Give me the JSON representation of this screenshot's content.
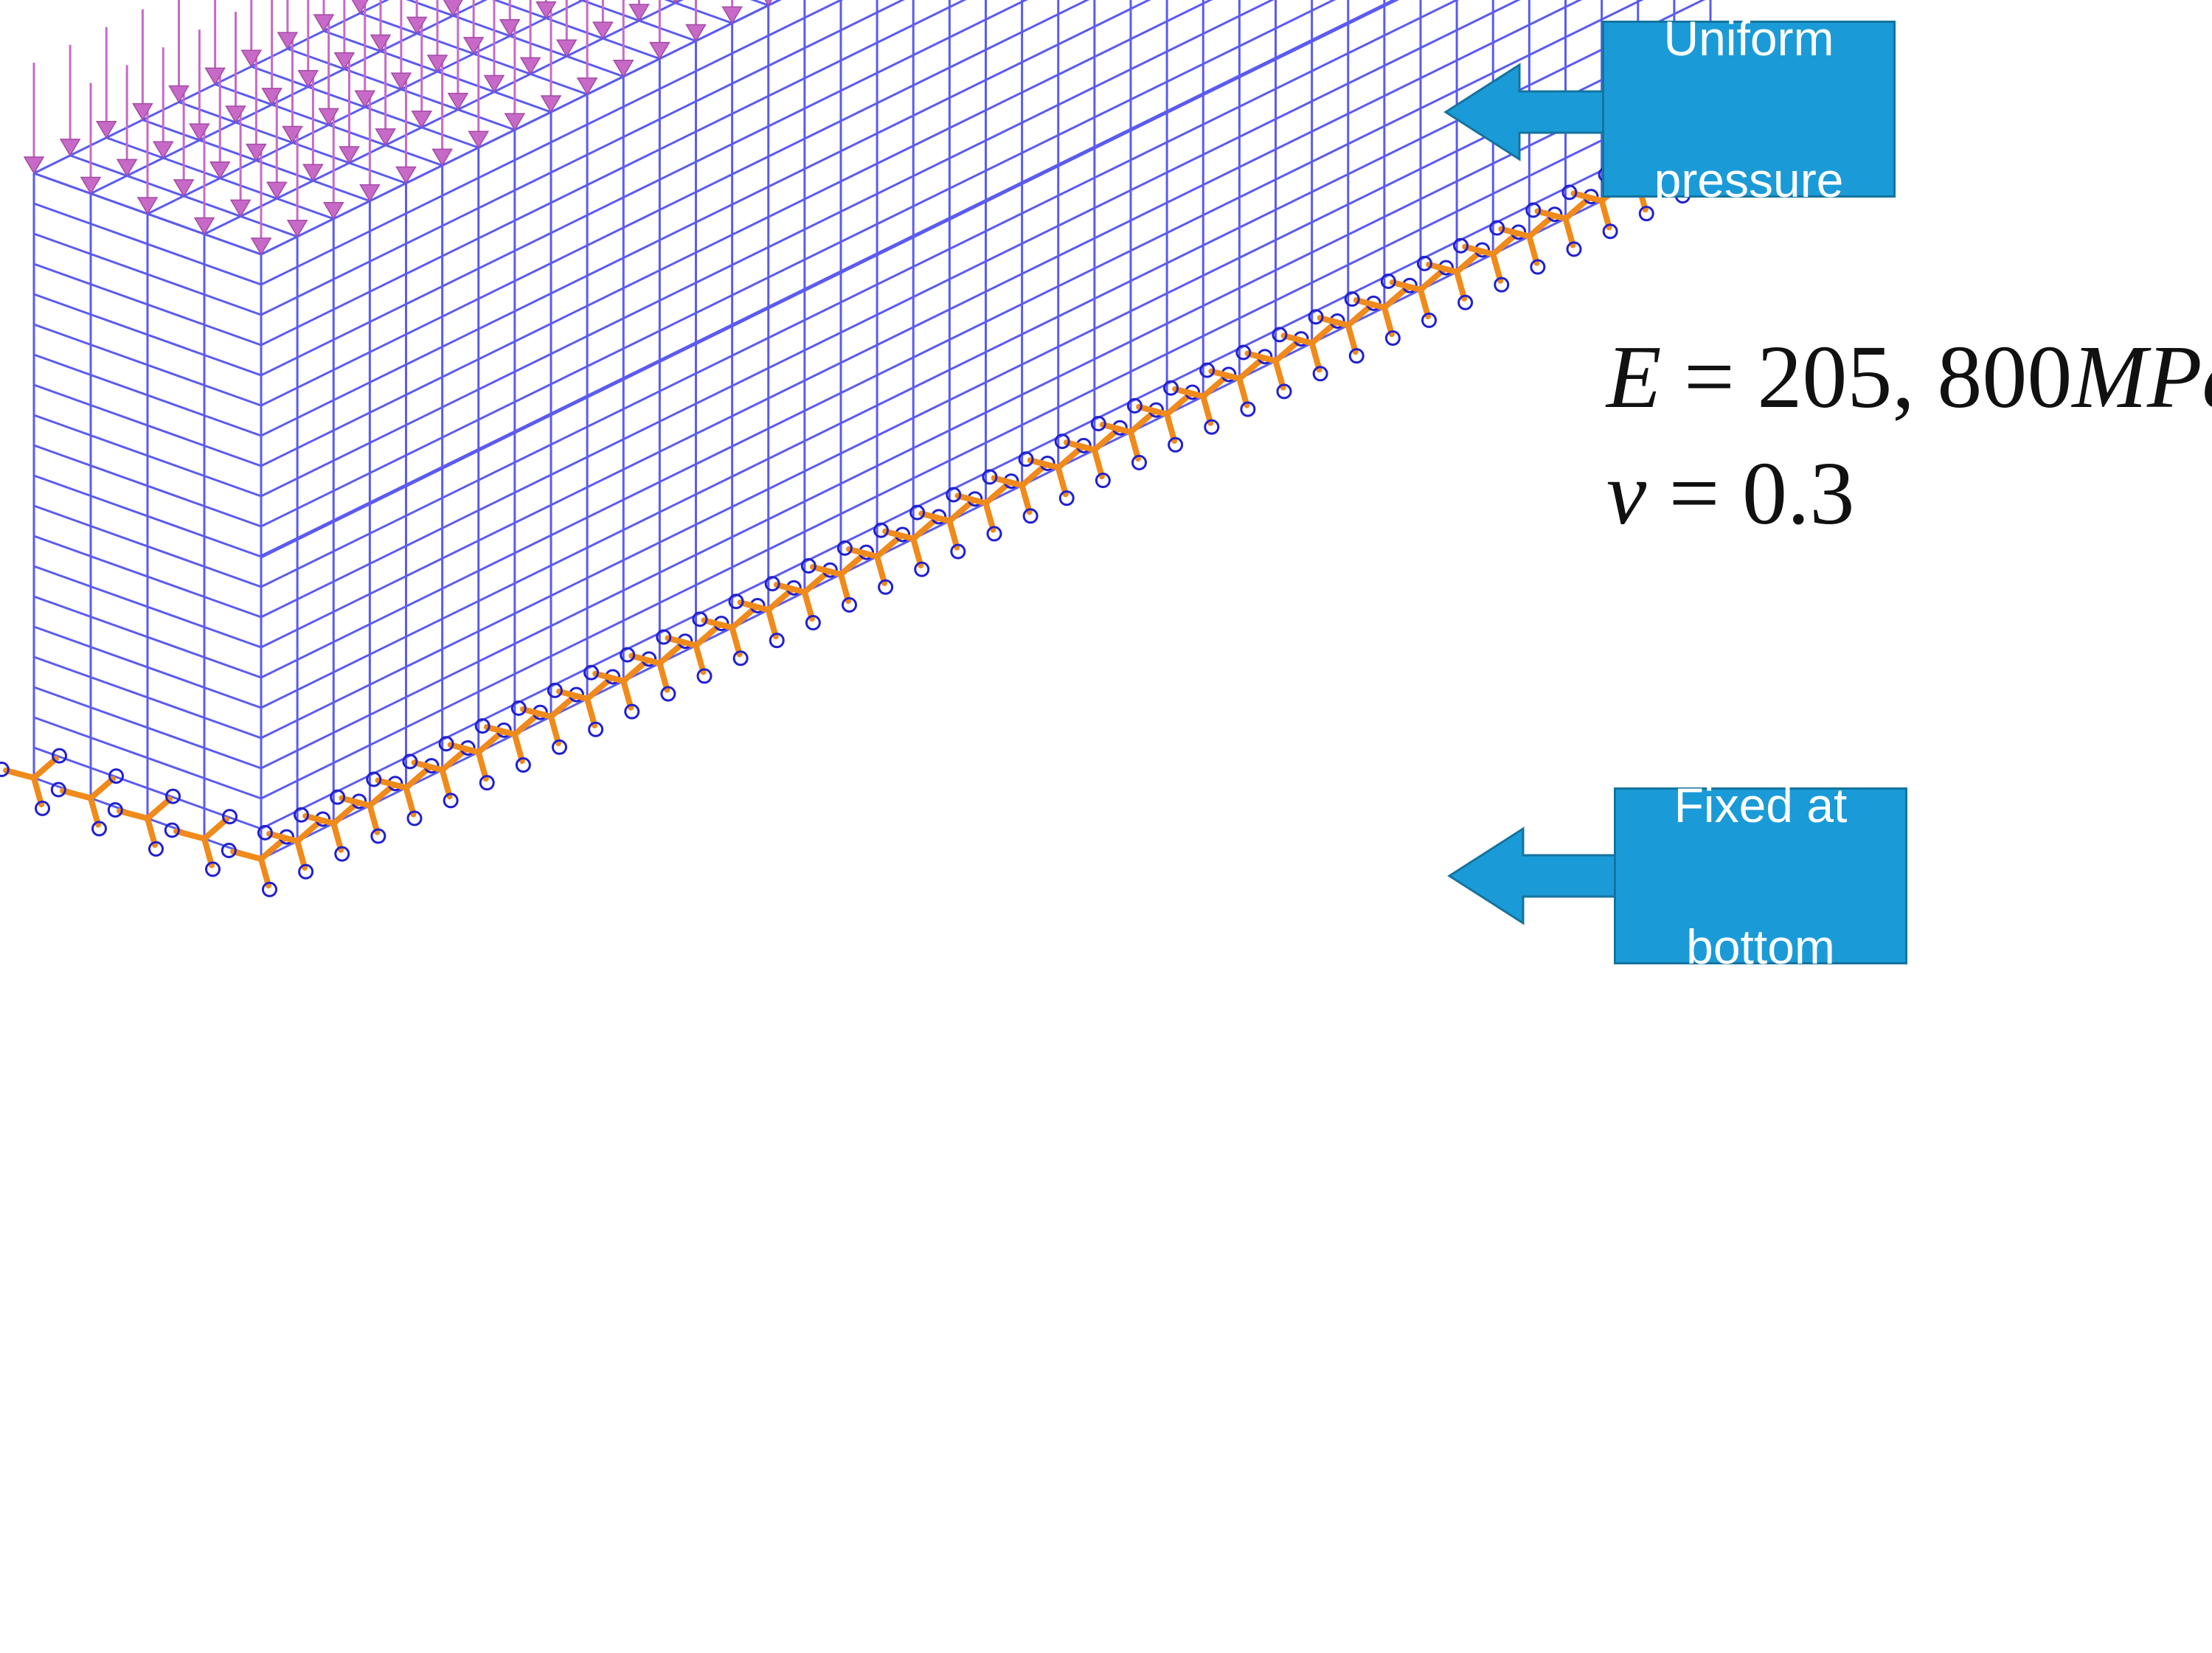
{
  "callouts": {
    "pressure": {
      "line1": "Uniform",
      "line2": "pressure"
    },
    "fixed": {
      "line1": "Fixed at",
      "line2": "bottom"
    }
  },
  "material": {
    "e_symbol": "E",
    "e_equals": " = ",
    "e_value": "205, 800",
    "e_unit": "MPa",
    "nu_symbol": "ν",
    "nu_equals": " = ",
    "nu_value": "0.3"
  },
  "colors": {
    "mesh": "#5b5bf0",
    "load_arrow": "#c76ac7",
    "support_orange": "#f08a1a",
    "support_blue": "#2020d0",
    "callout_fill": "#1a9bd7"
  },
  "icons": {
    "load": "down-arrow-icon",
    "support": "fixed-support-icon",
    "callout_pointer": "left-arrow-icon"
  }
}
